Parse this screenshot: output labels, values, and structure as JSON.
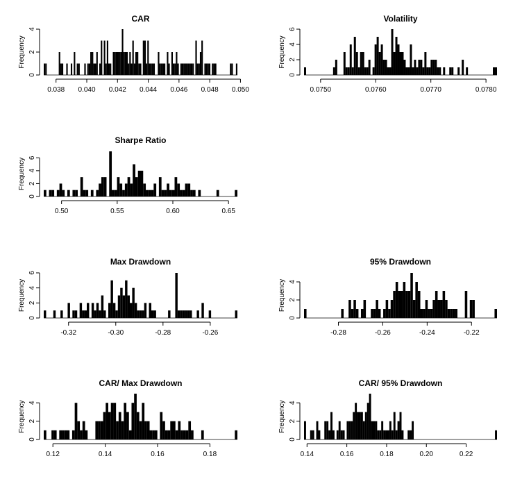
{
  "chart_data": [
    {
      "type": "histogram",
      "title": "CAR",
      "ylabel": "Frequency",
      "xlim": [
        0.0372,
        0.0498
      ],
      "ylim": [
        0,
        4
      ],
      "xticks": [
        "0.038",
        "0.040",
        "0.042",
        "0.044",
        "0.046",
        "0.048",
        "0.050"
      ],
      "xtick_values": [
        0.038,
        0.04,
        0.042,
        0.044,
        0.046,
        0.048,
        0.05
      ],
      "yticks": [
        "0",
        "2",
        "4"
      ],
      "ytick_values": [
        0,
        2,
        4
      ],
      "counts": [
        1,
        1,
        0,
        0,
        0,
        0,
        0,
        0,
        0,
        0,
        2,
        1,
        1,
        0,
        0,
        1,
        0,
        0,
        1,
        0,
        2,
        0,
        1,
        1,
        0,
        0,
        0,
        1,
        0,
        1,
        1,
        2,
        2,
        1,
        1,
        2,
        0,
        1,
        3,
        0,
        3,
        1,
        3,
        1,
        1,
        0,
        2,
        2,
        2,
        2,
        2,
        2,
        4,
        2,
        2,
        2,
        1,
        2,
        1,
        3,
        1,
        2,
        2,
        1,
        1,
        0,
        3,
        3,
        1,
        3,
        1,
        1,
        1,
        1,
        0,
        0,
        2,
        1,
        1,
        1,
        1,
        0,
        2,
        1,
        0,
        2,
        1,
        1,
        2,
        1,
        0,
        1,
        1,
        1,
        1,
        1,
        1,
        1,
        1,
        1,
        0,
        3,
        1,
        1,
        2,
        3,
        0,
        1,
        1,
        1,
        1,
        0,
        1,
        1,
        1,
        0,
        0,
        0,
        0,
        0,
        0,
        0,
        0,
        0,
        1,
        1,
        0,
        0,
        1
      ]
    },
    {
      "type": "histogram",
      "title": "Volatility",
      "ylabel": "Frequency",
      "xlim": [
        0.0747,
        0.0782
      ],
      "ylim": [
        0,
        6
      ],
      "xticks": [
        "0.0750",
        "0.0760",
        "0.0770",
        "0.0780"
      ],
      "xtick_values": [
        0.075,
        0.076,
        0.077,
        0.078
      ],
      "yticks": [
        "0",
        "2",
        "4",
        "6"
      ],
      "ytick_values": [
        0,
        2,
        4,
        6
      ],
      "counts": [
        1,
        0,
        0,
        0,
        0,
        0,
        0,
        0,
        0,
        0,
        0,
        0,
        0,
        0,
        1,
        2,
        0,
        0,
        0,
        3,
        1,
        1,
        4,
        1,
        5,
        3,
        1,
        3,
        3,
        1,
        1,
        2,
        0,
        1,
        4,
        5,
        3,
        4,
        2,
        2,
        1,
        1,
        6,
        3,
        5,
        4,
        3,
        3,
        2,
        1,
        1,
        4,
        1,
        2,
        1,
        2,
        2,
        1,
        3,
        1,
        1,
        2,
        2,
        2,
        1,
        1,
        0,
        1,
        0,
        0,
        1,
        1,
        0,
        0,
        1,
        0,
        2,
        0,
        1,
        0,
        0,
        0,
        0,
        0,
        0,
        0,
        0,
        0,
        0,
        0,
        0,
        1,
        1
      ]
    },
    {
      "type": "histogram",
      "title": "Sharpe Ratio",
      "ylabel": "Frequency",
      "xlim": [
        0.484,
        0.658
      ],
      "ylim": [
        0,
        7
      ],
      "xticks": [
        "0.50",
        "0.55",
        "0.60",
        "0.65"
      ],
      "xtick_values": [
        0.5,
        0.55,
        0.6,
        0.65
      ],
      "yticks": [
        "0",
        "2",
        "4",
        "6"
      ],
      "ytick_values": [
        0,
        2,
        4,
        6
      ],
      "counts": [
        1,
        0,
        1,
        1,
        0,
        1,
        2,
        1,
        0,
        1,
        0,
        1,
        1,
        0,
        3,
        1,
        1,
        0,
        1,
        0,
        1,
        2,
        3,
        3,
        0,
        7,
        1,
        1,
        3,
        2,
        1,
        2,
        3,
        2,
        5,
        3,
        4,
        4,
        2,
        1,
        1,
        1,
        2,
        0,
        3,
        1,
        1,
        2,
        1,
        1,
        3,
        2,
        1,
        1,
        2,
        2,
        1,
        1,
        0,
        1,
        0,
        0,
        0,
        0,
        0,
        0,
        1,
        0,
        0,
        0,
        0,
        0,
        0,
        1
      ]
    },
    {
      "type": "histogram",
      "title": "Max Drawdown",
      "ylabel": "Frequency",
      "xlim": [
        -0.3305,
        -0.2485
      ],
      "ylim": [
        0,
        6
      ],
      "xticks": [
        "-0.32",
        "-0.30",
        "-0.28",
        "-0.26"
      ],
      "xtick_values": [
        -0.32,
        -0.3,
        -0.28,
        -0.26
      ],
      "yticks": [
        "0",
        "2",
        "4",
        "6"
      ],
      "ytick_values": [
        0,
        2,
        4,
        6
      ],
      "counts": [
        1,
        0,
        0,
        0,
        1,
        0,
        0,
        1,
        0,
        0,
        2,
        0,
        1,
        1,
        0,
        2,
        1,
        1,
        2,
        0,
        2,
        1,
        2,
        1,
        3,
        1,
        0,
        2,
        5,
        2,
        1,
        3,
        4,
        3,
        5,
        3,
        2,
        4,
        2,
        1,
        1,
        1,
        2,
        0,
        2,
        1,
        1,
        0,
        0,
        0,
        0,
        0,
        1,
        0,
        0,
        6,
        1,
        1,
        1,
        1,
        1,
        1,
        0,
        0,
        1,
        0,
        2,
        0,
        0,
        1,
        0,
        0,
        0,
        0,
        0,
        0,
        0,
        0,
        0,
        0,
        1
      ]
    },
    {
      "type": "histogram",
      "title": "95% Drawdown",
      "ylabel": "Frequency",
      "xlim": [
        -0.2955,
        -0.2085
      ],
      "ylim": [
        0,
        5
      ],
      "xticks": [
        "-0.28",
        "-0.26",
        "-0.24",
        "-0.22"
      ],
      "xtick_values": [
        -0.28,
        -0.26,
        -0.24,
        -0.22
      ],
      "yticks": [
        "0",
        "2",
        "4"
      ],
      "ytick_values": [
        0,
        2,
        4
      ],
      "counts": [
        1,
        0,
        0,
        0,
        0,
        0,
        0,
        0,
        0,
        0,
        0,
        0,
        0,
        0,
        0,
        1,
        0,
        0,
        2,
        1,
        2,
        1,
        0,
        1,
        2,
        0,
        0,
        1,
        1,
        2,
        1,
        0,
        1,
        2,
        1,
        2,
        3,
        4,
        3,
        3,
        4,
        3,
        3,
        5,
        2,
        4,
        3,
        1,
        1,
        2,
        1,
        1,
        2,
        3,
        2,
        2,
        3,
        2,
        1,
        1,
        1,
        1,
        0,
        0,
        0,
        3,
        0,
        2,
        2,
        0,
        0,
        0,
        0,
        0,
        0,
        0,
        0,
        1
      ]
    },
    {
      "type": "histogram",
      "title": "CAR/ Max Drawdown",
      "ylabel": "Frequency",
      "xlim": [
        0.1165,
        0.1905
      ],
      "ylim": [
        0,
        5
      ],
      "xticks": [
        "0.12",
        "0.14",
        "0.16",
        "0.18"
      ],
      "xtick_values": [
        0.12,
        0.14,
        0.16,
        0.18
      ],
      "yticks": [
        "0",
        "2",
        "4"
      ],
      "ytick_values": [
        0,
        2,
        4
      ],
      "counts": [
        1,
        0,
        0,
        1,
        1,
        0,
        1,
        1,
        1,
        1,
        0,
        1,
        4,
        2,
        1,
        2,
        1,
        0,
        0,
        0,
        2,
        2,
        2,
        3,
        4,
        3,
        4,
        4,
        2,
        3,
        2,
        4,
        3,
        1,
        4,
        5,
        3,
        2,
        4,
        2,
        2,
        1,
        1,
        1,
        0,
        3,
        2,
        1,
        1,
        2,
        2,
        1,
        2,
        1,
        1,
        1,
        2,
        1,
        0,
        0,
        0,
        1,
        0,
        0,
        0,
        0,
        0,
        0,
        0,
        0,
        0,
        0,
        0,
        0,
        1
      ]
    },
    {
      "type": "histogram",
      "title": "CAR/ 95% Drawdown",
      "ylabel": "Frequency",
      "xlim": [
        0.1385,
        0.2355
      ],
      "ylim": [
        0,
        5
      ],
      "xticks": [
        "0.14",
        "0.16",
        "0.18",
        "0.20",
        "0.22"
      ],
      "xtick_values": [
        0.14,
        0.16,
        0.18,
        0.2,
        0.22
      ],
      "yticks": [
        "0",
        "2",
        "4"
      ],
      "ytick_values": [
        0,
        2,
        4
      ],
      "counts": [
        2,
        0,
        0,
        1,
        1,
        0,
        2,
        1,
        0,
        0,
        2,
        2,
        1,
        3,
        1,
        0,
        1,
        2,
        1,
        1,
        0,
        2,
        2,
        2,
        3,
        4,
        3,
        3,
        3,
        2,
        3,
        4,
        5,
        2,
        2,
        2,
        1,
        1,
        2,
        1,
        1,
        1,
        2,
        1,
        3,
        1,
        2,
        3,
        1,
        0,
        0,
        1,
        1,
        2,
        0,
        0,
        0,
        0,
        0,
        0,
        0,
        0,
        0,
        0,
        0,
        0,
        0,
        0,
        0,
        0,
        0,
        0,
        0,
        0,
        0,
        0,
        0,
        0,
        0,
        0,
        0,
        0,
        0,
        0,
        0,
        0,
        0,
        0,
        0,
        0,
        0,
        0,
        0,
        0,
        1
      ]
    }
  ]
}
